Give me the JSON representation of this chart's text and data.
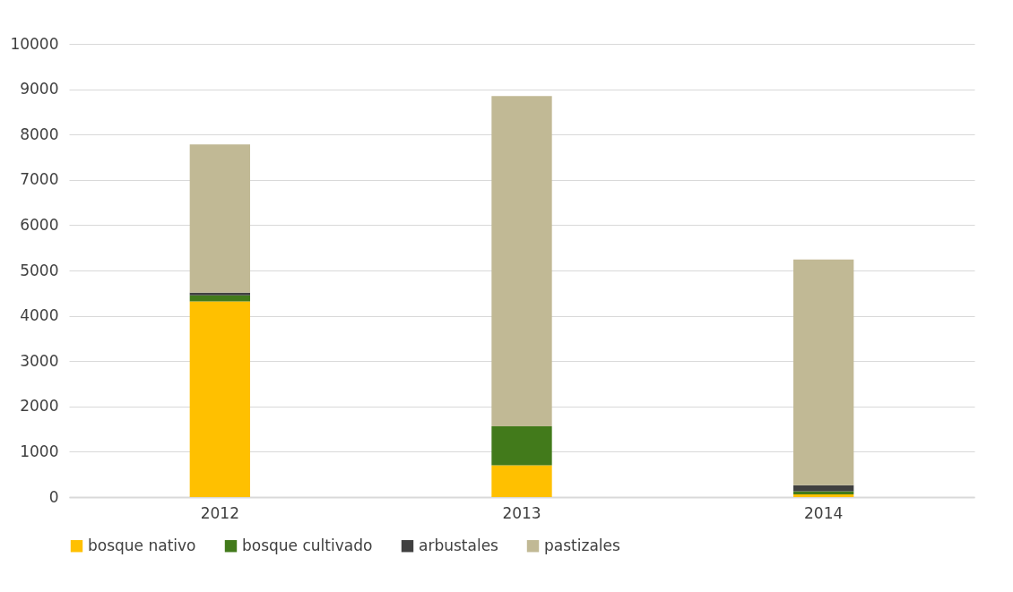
{
  "chart_data": {
    "type": "bar",
    "stacked": true,
    "categories": [
      "2012",
      "2013",
      "2014"
    ],
    "series": [
      {
        "name": "bosque nativo",
        "color": "#ffc000",
        "values": [
          4320,
          700,
          60
        ]
      },
      {
        "name": "bosque cultivado",
        "color": "#427a1b",
        "values": [
          130,
          860,
          70
        ]
      },
      {
        "name": "arbustales",
        "color": "#404040",
        "values": [
          60,
          0,
          130
        ]
      },
      {
        "name": "pastizales",
        "color": "#c1b995",
        "values": [
          3270,
          7290,
          4980
        ]
      }
    ],
    "ylim": [
      0,
      10000
    ],
    "yticks": [
      0,
      1000,
      2000,
      3000,
      4000,
      5000,
      6000,
      7000,
      8000,
      9000,
      10000
    ],
    "grid": "y",
    "legend": "bottom"
  }
}
